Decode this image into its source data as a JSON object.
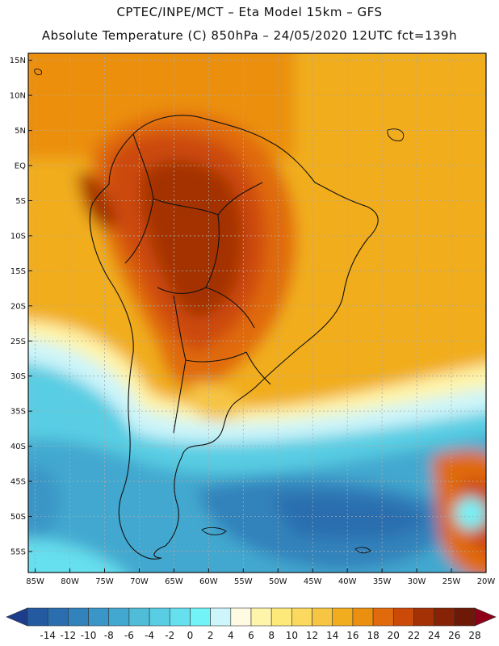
{
  "header": {
    "title_line1": "CPTEC/INPE/MCT –   Eta Model 15km – GFS",
    "title_line2": "Absolute Temperature (C) 850hPa – 24/05/2020 12UTC fct=139h"
  },
  "map": {
    "lat_labels": [
      "15N",
      "10N",
      "5N",
      "EQ",
      "5S",
      "10S",
      "15S",
      "20S",
      "25S",
      "30S",
      "35S",
      "40S",
      "45S",
      "50S",
      "55S"
    ],
    "lon_labels": [
      "85W",
      "80W",
      "75W",
      "70W",
      "65W",
      "60W",
      "55W",
      "50W",
      "45W",
      "40W",
      "35W",
      "30W",
      "25W",
      "20W"
    ],
    "lat_range": [
      -58,
      16
    ],
    "lon_range": [
      -86,
      -20
    ]
  },
  "colorbar": {
    "labels": [
      "-14",
      "-12",
      "-10",
      "-8",
      "-6",
      "-4",
      "-2",
      "0",
      "2",
      "4",
      "6",
      "8",
      "10",
      "12",
      "14",
      "16",
      "18",
      "20",
      "22",
      "24",
      "26",
      "28"
    ],
    "colors": [
      "#1e3c8c",
      "#235aa0",
      "#2a6eaf",
      "#3282bb",
      "#3a96c6",
      "#43a8cf",
      "#4fbcd8",
      "#58cde3",
      "#66dfee",
      "#72f3f8",
      "#cdf5fa",
      "#fffbe3",
      "#fff5aa",
      "#fde97a",
      "#fbd95e",
      "#f6c544",
      "#f1ad1e",
      "#eb8f10",
      "#e06a0c",
      "#cc4a08",
      "#a43006",
      "#862306",
      "#6e1908",
      "#8e0018"
    ]
  }
}
